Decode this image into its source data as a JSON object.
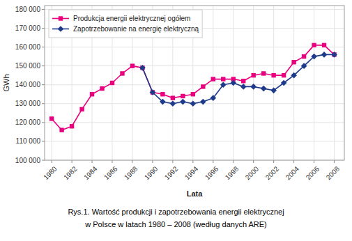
{
  "chart_data": {
    "type": "line",
    "title": "Rys.1. Wartość produkcji i zapotrzebowania energii elektrycznej",
    "subtitle": "w Polsce w latach 1980 – 2008 (według danych ARE)",
    "x_label": "Lata",
    "y_label": "GWh",
    "x": [
      1980,
      1981,
      1982,
      1983,
      1984,
      1985,
      1986,
      1987,
      1988,
      1989,
      1990,
      1991,
      1992,
      1993,
      1994,
      1995,
      1996,
      1997,
      1998,
      1999,
      2000,
      2001,
      2002,
      2003,
      2004,
      2005,
      2006,
      2007,
      2008
    ],
    "series": [
      {
        "name": "Produkcja energii elektrycznej ogółem",
        "color": "#e8007f",
        "marker": "square",
        "values": [
          122000,
          116000,
          118000,
          127000,
          135000,
          138000,
          141000,
          146000,
          150000,
          149000,
          136000,
          135000,
          133000,
          134000,
          135000,
          139000,
          143000,
          143000,
          143000,
          142000,
          145000,
          146000,
          145000,
          145000,
          152000,
          155000,
          161000,
          161000,
          156000
        ]
      },
      {
        "name": "Zapotrzebowanie na energię elektryczną",
        "color": "#1e3a8a",
        "marker": "diamond",
        "values": [
          null,
          null,
          null,
          null,
          null,
          null,
          null,
          null,
          null,
          149000,
          136000,
          131000,
          130000,
          131000,
          130000,
          131000,
          133000,
          140000,
          141000,
          139000,
          139000,
          138000,
          137000,
          141000,
          145000,
          150000,
          155000,
          156000,
          156000
        ]
      }
    ],
    "xlim": [
      1979.3,
      2009.0
    ],
    "xticks": [
      1980,
      1982,
      1984,
      1986,
      1988,
      1990,
      1992,
      1994,
      1996,
      1998,
      2000,
      2002,
      2004,
      2006,
      2008
    ],
    "ylim": [
      100000,
      182000
    ],
    "yticks": [
      {
        "value": 100000,
        "label": "100 000"
      },
      {
        "value": 110000,
        "label": "110 000"
      },
      {
        "value": 120000,
        "label": "120 000"
      },
      {
        "value": 130000,
        "label": "130 000"
      },
      {
        "value": 140000,
        "label": "140 000"
      },
      {
        "value": 150000,
        "label": "150 000"
      },
      {
        "value": 160000,
        "label": "160 000"
      },
      {
        "value": 170000,
        "label": "170 000"
      },
      {
        "value": 180000,
        "label": "180 000"
      }
    ],
    "grid": true,
    "legend": "upper left"
  }
}
